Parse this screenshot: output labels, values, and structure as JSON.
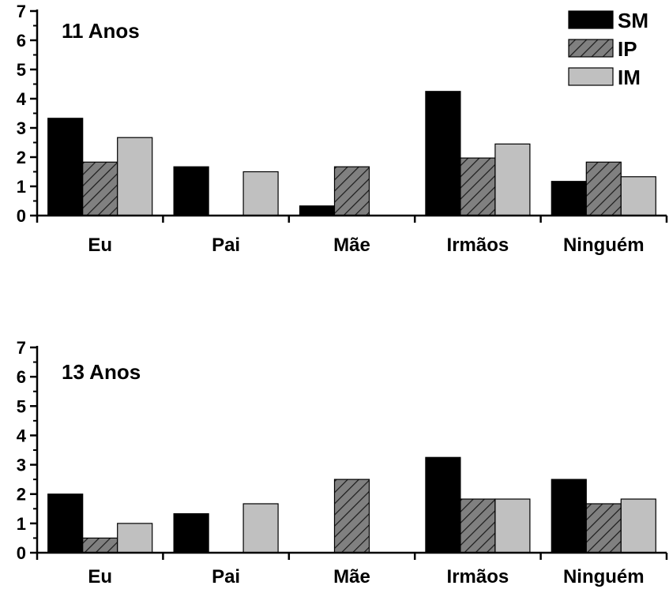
{
  "chart_data": [
    {
      "type": "bar",
      "title": "11 Anos",
      "categories": [
        "Eu",
        "Pai",
        "Mãe",
        "Irmãos",
        "Ninguém"
      ],
      "ylim": [
        0,
        7
      ],
      "yticks": [
        "0",
        "1",
        "2",
        "3",
        "4",
        "5",
        "6",
        "7"
      ],
      "series": [
        {
          "name": "SM",
          "values": [
            3.33,
            1.67,
            0.33,
            4.25,
            1.17
          ],
          "color": "#000000",
          "pattern": "solid"
        },
        {
          "name": "IP",
          "values": [
            1.83,
            0,
            1.67,
            1.97,
            1.83
          ],
          "color": "#808080",
          "pattern": "hatch"
        },
        {
          "name": "IM",
          "values": [
            2.67,
            1.5,
            0,
            2.45,
            1.33
          ],
          "color": "#c0c0c0",
          "pattern": "solid"
        }
      ],
      "legend": {
        "position": "top-right",
        "items": [
          "SM",
          "IP",
          "IM"
        ]
      }
    },
    {
      "type": "bar",
      "title": "13 Anos",
      "categories": [
        "Eu",
        "Pai",
        "Mãe",
        "Irmãos",
        "Ninguém"
      ],
      "ylim": [
        0,
        7
      ],
      "yticks": [
        "0",
        "1",
        "2",
        "3",
        "4",
        "5",
        "6",
        "7"
      ],
      "series": [
        {
          "name": "SM",
          "values": [
            2.0,
            1.33,
            0,
            3.25,
            2.5
          ],
          "color": "#000000",
          "pattern": "solid"
        },
        {
          "name": "IP",
          "values": [
            0.5,
            0,
            2.5,
            1.83,
            1.67
          ],
          "color": "#808080",
          "pattern": "hatch"
        },
        {
          "name": "IM",
          "values": [
            1.0,
            1.67,
            0,
            1.83,
            1.83
          ],
          "color": "#c0c0c0",
          "pattern": "solid"
        }
      ]
    }
  ]
}
